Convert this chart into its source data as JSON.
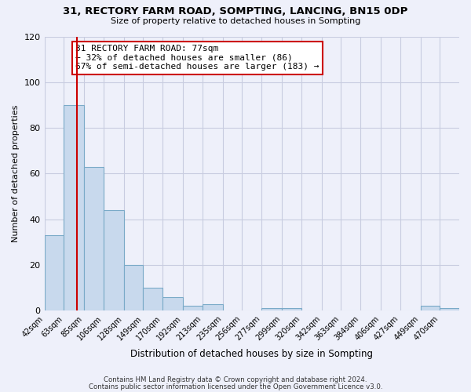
{
  "title": "31, RECTORY FARM ROAD, SOMPTING, LANCING, BN15 0DP",
  "subtitle": "Size of property relative to detached houses in Sompting",
  "xlabel": "Distribution of detached houses by size in Sompting",
  "ylabel": "Number of detached properties",
  "bar_labels": [
    "42sqm",
    "63sqm",
    "85sqm",
    "106sqm",
    "128sqm",
    "149sqm",
    "170sqm",
    "192sqm",
    "213sqm",
    "235sqm",
    "256sqm",
    "277sqm",
    "299sqm",
    "320sqm",
    "342sqm",
    "363sqm",
    "384sqm",
    "406sqm",
    "427sqm",
    "449sqm",
    "470sqm"
  ],
  "bar_values": [
    33,
    90,
    63,
    44,
    20,
    10,
    6,
    2,
    3,
    0,
    0,
    1,
    1,
    0,
    0,
    0,
    0,
    0,
    0,
    2,
    1
  ],
  "property_line_x": 77,
  "bar_color": "#c8d9ed",
  "bar_edge_color": "#7aaac8",
  "vline_color": "#cc0000",
  "annotation_box_edge": "#cc0000",
  "annotation_text": "31 RECTORY FARM ROAD: 77sqm\n← 32% of detached houses are smaller (86)\n67% of semi-detached houses are larger (183) →",
  "footer1": "Contains HM Land Registry data © Crown copyright and database right 2024.",
  "footer2": "Contains public sector information licensed under the Open Government Licence v3.0.",
  "ylim": [
    0,
    120
  ],
  "yticks": [
    0,
    20,
    40,
    60,
    80,
    100,
    120
  ],
  "background_color": "#eef0fa",
  "grid_color": "#c8cce0"
}
